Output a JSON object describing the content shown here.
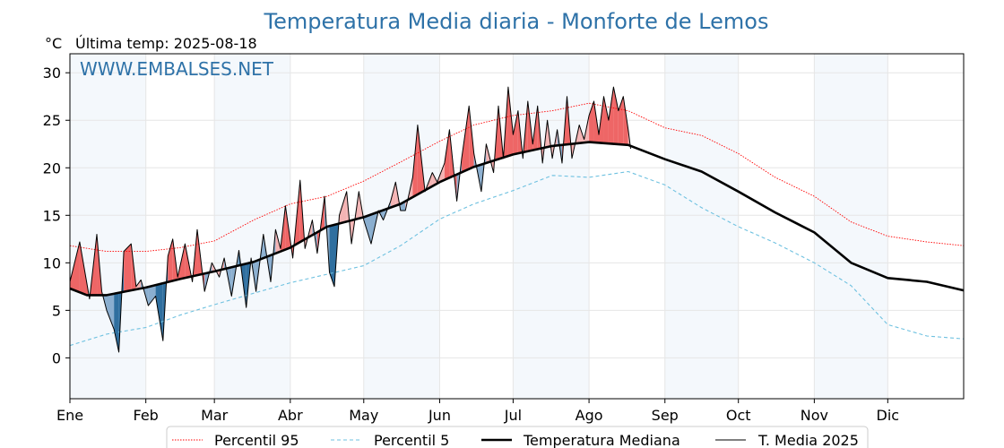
{
  "chart_data": {
    "type": "line",
    "title": "Temperatura Media diaria - Monforte de Lemos",
    "unit_label": "°C",
    "last_temp_label": "Última temp: 2025-08-18",
    "watermark": "WWW.EMBALSES.NET",
    "ylim": [
      -4.3,
      32
    ],
    "y_ticks": [
      0,
      5,
      10,
      15,
      20,
      25,
      30
    ],
    "x_range_days": [
      0,
      365
    ],
    "x_ticks": [
      {
        "label": "Ene",
        "day": 0
      },
      {
        "label": "Feb",
        "day": 31
      },
      {
        "label": "Mar",
        "day": 59
      },
      {
        "label": "Abr",
        "day": 90
      },
      {
        "label": "May",
        "day": 120
      },
      {
        "label": "Jun",
        "day": 151
      },
      {
        "label": "Jul",
        "day": 181
      },
      {
        "label": "Ago",
        "day": 212
      },
      {
        "label": "Sep",
        "day": 243
      },
      {
        "label": "Oct",
        "day": 273
      },
      {
        "label": "Nov",
        "day": 304
      },
      {
        "label": "Dic",
        "day": 334
      }
    ],
    "shaded_months": [
      [
        0,
        31
      ],
      [
        59,
        90
      ],
      [
        120,
        151
      ],
      [
        181,
        212
      ],
      [
        243,
        273
      ],
      [
        304,
        334
      ]
    ],
    "series": [
      {
        "name": "Percentil 95",
        "style": "dotted",
        "color": "#ff0000",
        "x": [
          0,
          15,
          31,
          45,
          59,
          75,
          90,
          105,
          120,
          135,
          151,
          165,
          181,
          197,
          212,
          228,
          243,
          258,
          273,
          288,
          304,
          319,
          334,
          350,
          365
        ],
        "values": [
          11.8,
          11.2,
          11.2,
          11.6,
          12.3,
          14.5,
          16.2,
          17.0,
          18.6,
          20.6,
          22.8,
          24.5,
          25.5,
          26.0,
          26.8,
          26.0,
          24.2,
          23.4,
          21.5,
          19.0,
          17.0,
          14.3,
          12.8,
          12.2,
          11.8
        ]
      },
      {
        "name": "Percentil 5",
        "style": "dashed",
        "color": "#6ec1e0",
        "x": [
          0,
          15,
          31,
          45,
          59,
          75,
          90,
          105,
          120,
          135,
          151,
          165,
          181,
          197,
          212,
          228,
          243,
          258,
          273,
          288,
          304,
          319,
          334,
          350,
          365
        ],
        "values": [
          1.3,
          2.5,
          3.2,
          4.5,
          5.6,
          6.8,
          7.9,
          8.8,
          9.7,
          11.8,
          14.6,
          16.2,
          17.6,
          19.2,
          19.0,
          19.6,
          18.2,
          15.8,
          13.8,
          12.1,
          10.0,
          7.6,
          3.5,
          2.3,
          2.0
        ]
      },
      {
        "name": "Temperatura Mediana",
        "style": "solid-thick",
        "color": "#000000",
        "x": [
          0,
          7,
          15,
          31,
          45,
          59,
          75,
          90,
          105,
          120,
          135,
          151,
          165,
          181,
          197,
          212,
          228,
          243,
          258,
          273,
          288,
          304,
          319,
          334,
          350,
          365
        ],
        "values": [
          7.3,
          6.6,
          6.6,
          7.4,
          8.3,
          9.1,
          10.1,
          11.6,
          13.8,
          14.8,
          16.2,
          18.5,
          20.1,
          21.4,
          22.3,
          22.7,
          22.4,
          20.9,
          19.6,
          17.5,
          15.3,
          13.2,
          10.0,
          8.4,
          8.0,
          7.1
        ]
      },
      {
        "name": "T. Media 2025",
        "style": "solid-thin",
        "color": "#000000",
        "x": [
          0,
          4,
          8,
          11,
          13,
          15,
          18,
          20,
          22,
          25,
          27,
          29,
          32,
          35,
          38,
          40,
          42,
          44,
          47,
          50,
          52,
          55,
          58,
          61,
          63,
          66,
          69,
          72,
          74,
          76,
          79,
          82,
          84,
          86,
          88,
          91,
          94,
          96,
          99,
          101,
          104,
          106,
          108,
          110,
          113,
          115,
          118,
          120,
          123,
          126,
          128,
          131,
          133,
          135,
          137,
          140,
          142,
          145,
          148,
          150,
          153,
          155,
          158,
          160,
          163,
          165,
          168,
          170,
          173,
          175,
          177,
          179,
          181,
          183,
          185,
          187,
          189,
          191,
          193,
          195,
          197,
          199,
          201,
          203,
          205,
          208,
          210,
          212,
          214,
          216,
          218,
          220,
          222,
          224,
          226,
          228,
          229
        ],
        "values": [
          8.0,
          12.2,
          6.2,
          13.0,
          7.0,
          5.0,
          3.0,
          0.6,
          11.2,
          12.0,
          7.5,
          8.2,
          5.5,
          6.5,
          1.8,
          10.7,
          12.5,
          8.5,
          12.0,
          8.0,
          13.5,
          7.0,
          10.0,
          8.5,
          10.5,
          6.5,
          11.3,
          5.3,
          10.5,
          7.0,
          13.0,
          8.0,
          13.5,
          11.5,
          16.0,
          10.5,
          18.7,
          11.5,
          14.5,
          11.0,
          17.0,
          9.0,
          7.5,
          15.0,
          17.5,
          12.0,
          17.5,
          14.5,
          12.0,
          15.5,
          14.5,
          16.5,
          18.5,
          15.5,
          15.5,
          19.0,
          24.5,
          17.5,
          19.5,
          18.5,
          20.5,
          24.0,
          16.5,
          21.0,
          26.5,
          21.5,
          17.5,
          22.5,
          19.5,
          26.5,
          21.0,
          28.5,
          23.5,
          26.0,
          21.0,
          27.0,
          22.5,
          26.5,
          20.5,
          25.0,
          21.0,
          24.0,
          20.5,
          27.5,
          21.0,
          24.5,
          23.0,
          25.5,
          27.0,
          23.5,
          27.5,
          25.0,
          28.5,
          26.0,
          27.5,
          24.0,
          22.0
        ]
      }
    ]
  }
}
